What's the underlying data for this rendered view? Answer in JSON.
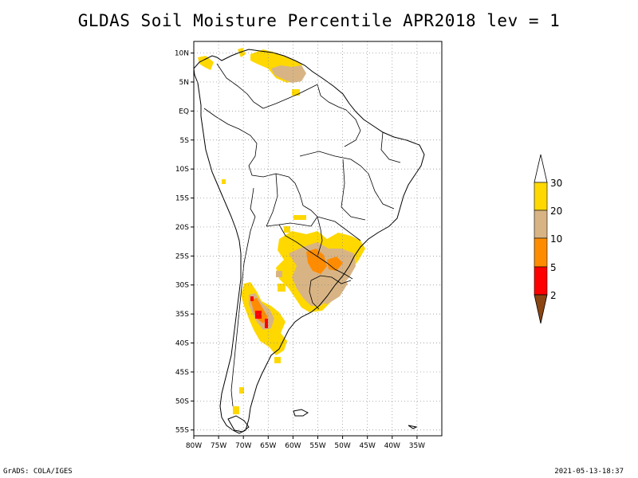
{
  "title": "GLDAS Soil Moisture Percentile APR2018 lev = 1",
  "footer": {
    "left": "GrADS: COLA/IGES",
    "right": "2021-05-13-18:37"
  },
  "map": {
    "lon_range": [
      -80,
      -30
    ],
    "lat_range": [
      -56,
      12
    ],
    "lat_ticks": [
      "10N",
      "5N",
      "EQ",
      "5S",
      "10S",
      "15S",
      "20S",
      "25S",
      "30S",
      "35S",
      "40S",
      "45S",
      "50S",
      "55S"
    ],
    "lat_values": [
      10,
      5,
      0,
      -5,
      -10,
      -15,
      -20,
      -25,
      -30,
      -35,
      -40,
      -45,
      -50,
      -55
    ],
    "lon_ticks": [
      "80W",
      "75W",
      "70W",
      "65W",
      "60W",
      "55W",
      "50W",
      "45W",
      "40W",
      "35W"
    ],
    "lon_values": [
      -80,
      -75,
      -70,
      -65,
      -60,
      -55,
      -50,
      -45,
      -40,
      -35
    ],
    "grid": true
  },
  "colorbar": {
    "labels": [
      "30",
      "20",
      "10",
      "5",
      "2"
    ],
    "colors": {
      "above_30": "#ffffff",
      "c20_30": "#ffd800",
      "c10_20": "#d8b485",
      "c5_10": "#ff8c00",
      "c2_5": "#ff0000",
      "below_2": "#8b4513"
    }
  },
  "colors": {
    "yellow": "#ffd800",
    "tan": "#d8b485",
    "orange": "#ff8c00",
    "red": "#ff0000"
  }
}
